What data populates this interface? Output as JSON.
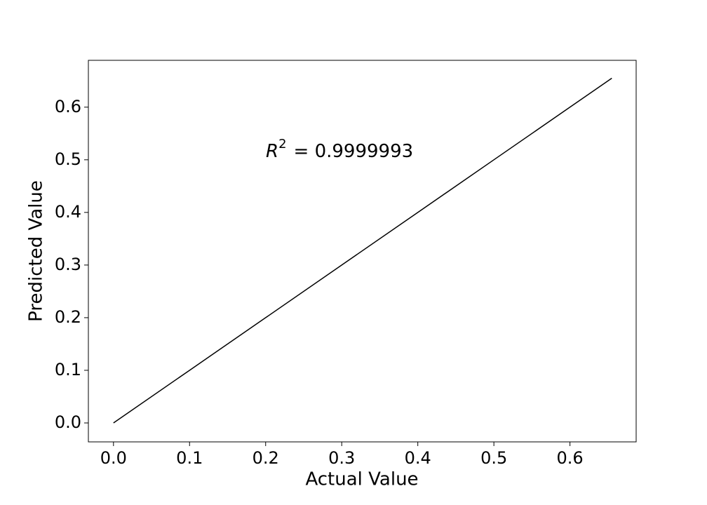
{
  "chart_data": {
    "type": "line",
    "x": [
      0,
      0.1,
      0.2,
      0.3,
      0.4,
      0.5,
      0.6,
      0.655
    ],
    "values": [
      0,
      0.1,
      0.2,
      0.3,
      0.4,
      0.5,
      0.6,
      0.655
    ],
    "color": "#000000",
    "xlabel": "Actual Value",
    "ylabel": "Predicted Value",
    "annotation": {
      "symbol": "R",
      "superscript": "2",
      "text": "= 0.9999993"
    },
    "xlim": [
      -0.033,
      0.687
    ],
    "ylim": [
      -0.036,
      0.689
    ],
    "xticks": [
      {
        "value": 0,
        "label": "0.0"
      },
      0.1,
      0.2,
      0.3,
      0.4,
      0.5,
      0.6
    ],
    "yticks": [
      {
        "value": 0,
        "label": "0.0"
      },
      0.1,
      0.2,
      0.3,
      0.4,
      0.5,
      0.6
    ]
  }
}
